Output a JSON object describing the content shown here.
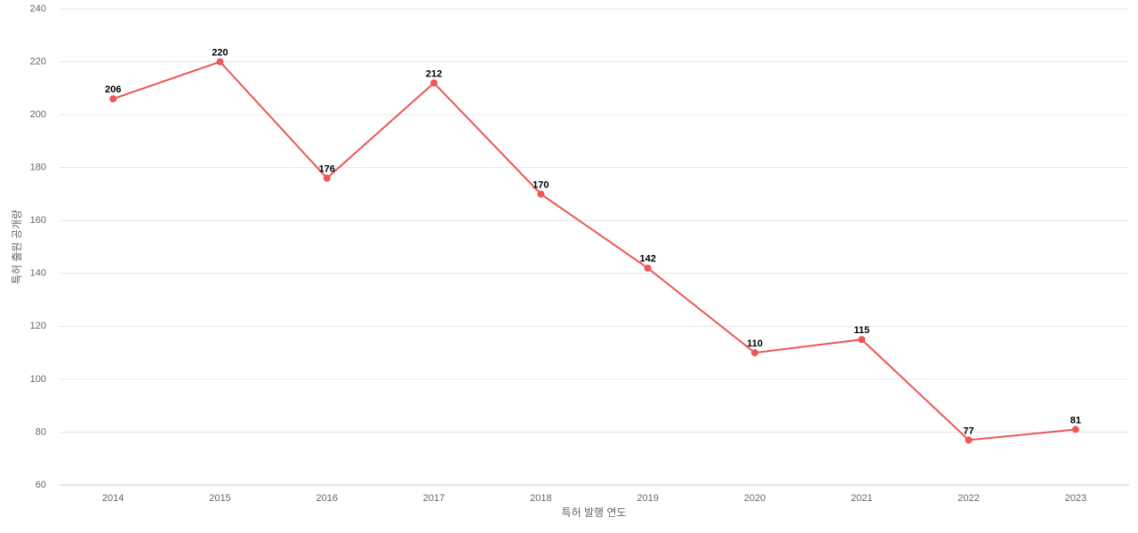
{
  "chart_data": {
    "type": "line",
    "x_label": "특허 발행 연도",
    "y_label": "특허 출원 공개량",
    "categories": [
      "2014",
      "2015",
      "2016",
      "2017",
      "2018",
      "2019",
      "2020",
      "2021",
      "2022",
      "2023"
    ],
    "values": [
      206,
      220,
      176,
      212,
      170,
      142,
      110,
      115,
      77,
      81
    ],
    "color": "#eb5757",
    "ylim": [
      60,
      240
    ],
    "yticks": [
      60,
      80,
      100,
      120,
      140,
      160,
      180,
      200,
      220,
      240
    ],
    "grid": true
  }
}
